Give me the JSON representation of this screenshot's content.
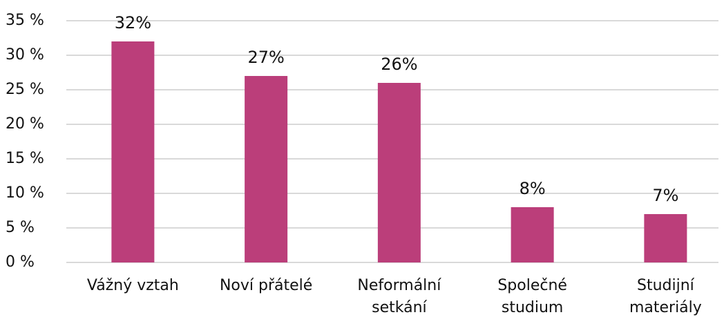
{
  "chart_data": {
    "type": "bar",
    "categories": [
      "Vážný vztah",
      "Noví přátelé",
      "Neformální setkání",
      "Společné studium",
      "Studijní materiály"
    ],
    "values": [
      32,
      27,
      26,
      8,
      7
    ],
    "value_labels": [
      "32%",
      "27%",
      "26%",
      "8%",
      "7%"
    ],
    "color": "#bb3e7a",
    "ylim": [
      0,
      35
    ],
    "yticks": [
      {
        "value": 0,
        "label": "0 %"
      },
      {
        "value": 5,
        "label": "5 %"
      },
      {
        "value": 10,
        "label": "10 %"
      },
      {
        "value": 15,
        "label": "15 %"
      },
      {
        "value": 20,
        "label": "20 %"
      },
      {
        "value": 25,
        "label": "25 %"
      },
      {
        "value": 30,
        "label": "30 %"
      },
      {
        "value": 35,
        "label": "35 %"
      }
    ],
    "grid": true
  }
}
